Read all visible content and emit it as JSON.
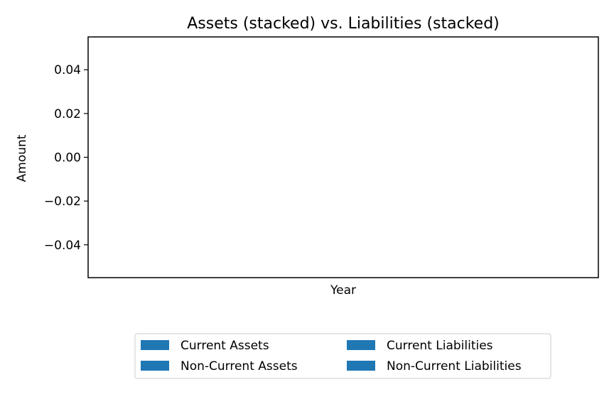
{
  "chart_data": {
    "type": "bar",
    "stacked": true,
    "title": "Assets (stacked) vs. Liabilities (stacked)",
    "xlabel": "Year",
    "ylabel": "Amount",
    "ylim": [
      -0.055,
      0.055
    ],
    "yticks": [
      {
        "value": 0.04,
        "label": "0.04"
      },
      {
        "value": 0.02,
        "label": "0.02"
      },
      {
        "value": 0.0,
        "label": "0.00"
      },
      {
        "value": -0.02,
        "label": "−0.02"
      },
      {
        "value": -0.04,
        "label": "−0.04"
      }
    ],
    "categories": [],
    "grid": false,
    "legend_position": "bottom-center",
    "series": [
      {
        "name": "Current Assets",
        "values": [],
        "color": "#1f77b4"
      },
      {
        "name": "Non-Current Assets",
        "values": [],
        "color": "#1f77b4"
      },
      {
        "name": "Current Liabilities",
        "values": [],
        "color": "#1f77b4"
      },
      {
        "name": "Non-Current Liabilities",
        "values": [],
        "color": "#1f77b4"
      }
    ]
  }
}
